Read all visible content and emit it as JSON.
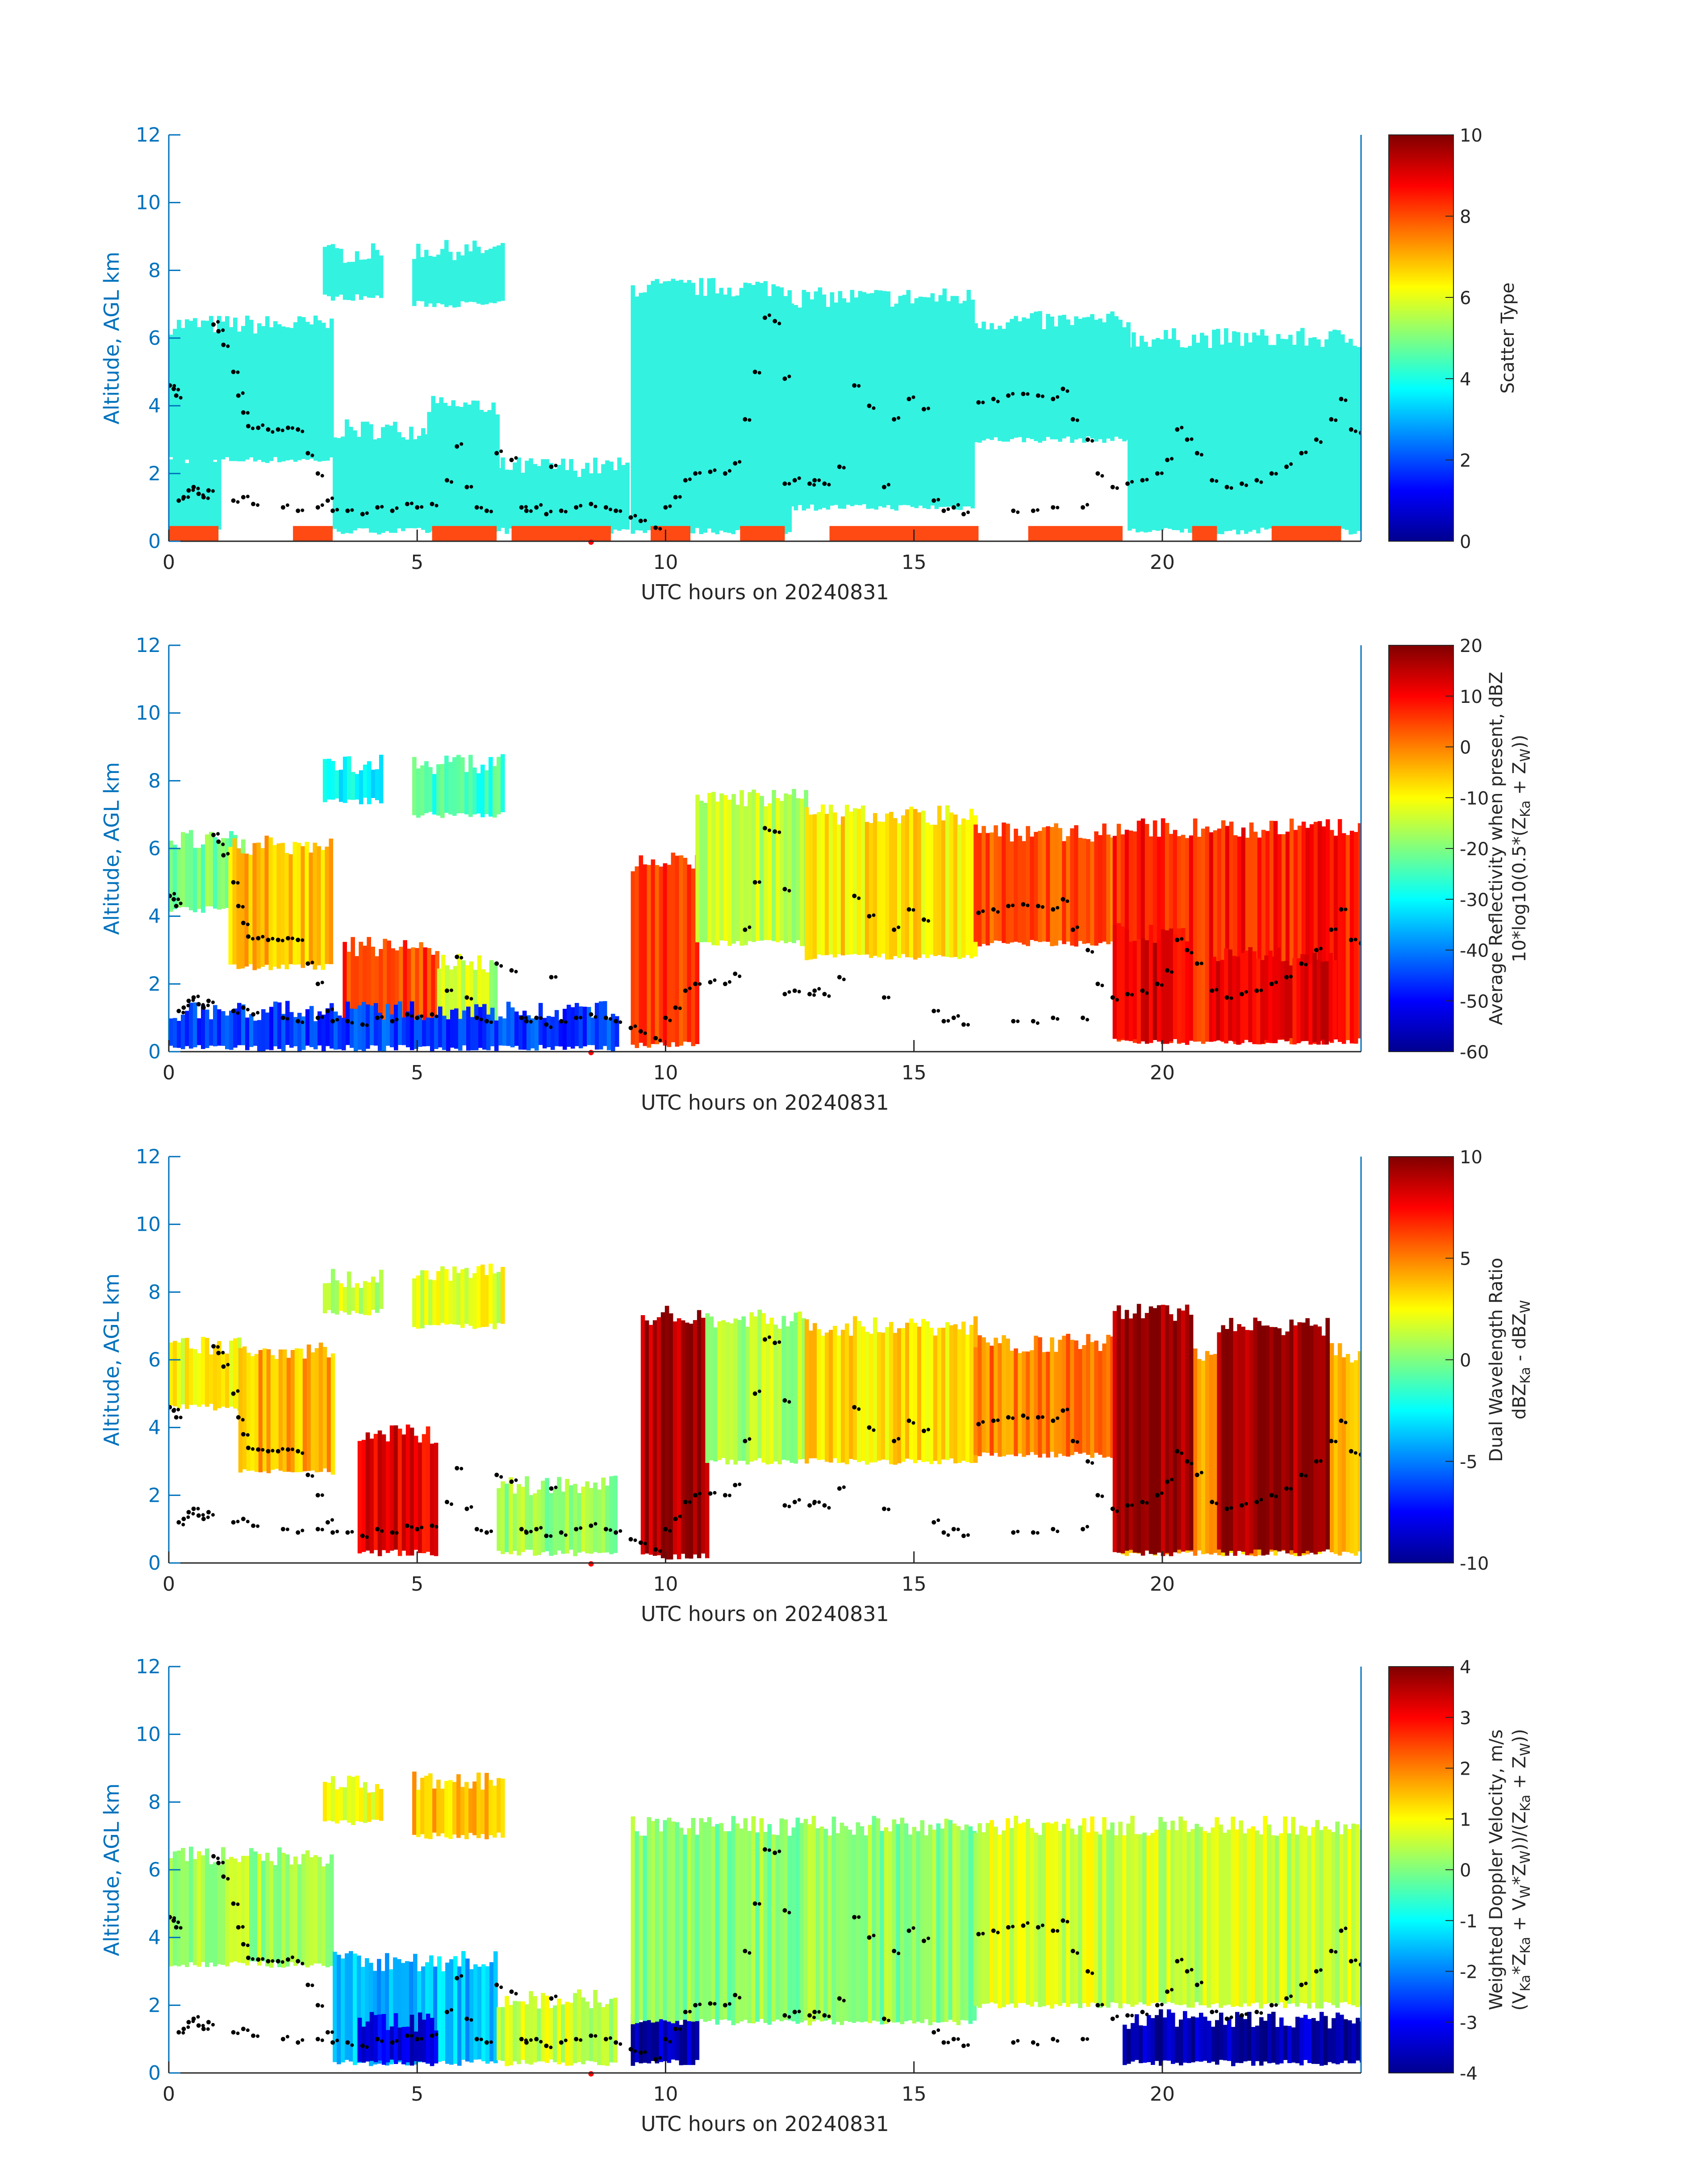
{
  "chart_data": [
    {
      "type": "heatmap",
      "xlabel": "UTC hours on 20240831",
      "ylabel": "Altitude, AGL km",
      "xlim": [
        0,
        24
      ],
      "ylim": [
        0,
        12
      ],
      "xticks": [
        "0",
        "5",
        "10",
        "15",
        "20"
      ],
      "yticks": [
        "0",
        "2",
        "4",
        "6",
        "8",
        "10",
        "12"
      ],
      "colorbar": {
        "label_lines": [
          "Scatter Type"
        ],
        "range": [
          0,
          10
        ],
        "ticks": [
          "0",
          "2",
          "4",
          "6",
          "8",
          "10"
        ]
      },
      "colors": {
        "cloud": "#33f2e0",
        "surface": "#ff4a14",
        "edge": "#33f2e0"
      },
      "regions": [
        {
          "x0": 0.0,
          "x1": 3.3,
          "y0": 2.4,
          "y1": 6.4
        },
        {
          "x0": 3.3,
          "x1": 6.6,
          "y0": 0.3,
          "y1": 3.3
        },
        {
          "x0": 5.2,
          "x1": 6.6,
          "y0": 0.3,
          "y1": 4.0
        },
        {
          "x0": 3.1,
          "x1": 4.3,
          "y0": 7.2,
          "y1": 8.5
        },
        {
          "x0": 4.9,
          "x1": 6.7,
          "y0": 7.0,
          "y1": 8.6
        },
        {
          "x0": 6.6,
          "x1": 9.2,
          "y0": 0.3,
          "y1": 2.2
        },
        {
          "x0": 9.3,
          "x1": 12.5,
          "y0": 0.3,
          "y1": 7.5
        },
        {
          "x0": 12.5,
          "x1": 16.2,
          "y0": 1.0,
          "y1": 7.2
        },
        {
          "x0": 16.2,
          "x1": 19.3,
          "y0": 3.0,
          "y1": 6.5
        },
        {
          "x0": 19.3,
          "x1": 24.0,
          "y0": 0.3,
          "y1": 6.0
        },
        {
          "x0": 0.0,
          "x1": 1.0,
          "y0": 0.3,
          "y1": 2.5
        }
      ],
      "surface_bands": [
        [
          0.0,
          1.0
        ],
        [
          2.5,
          3.3
        ],
        [
          5.3,
          6.6
        ],
        [
          6.9,
          8.9
        ],
        [
          9.7,
          10.5
        ],
        [
          11.5,
          12.4
        ],
        [
          13.3,
          16.3
        ],
        [
          17.3,
          19.2
        ],
        [
          20.6,
          21.1
        ],
        [
          22.2,
          23.6
        ]
      ]
    },
    {
      "type": "heatmap",
      "xlabel": "UTC hours on 20240831",
      "ylabel": "Altitude, AGL km",
      "xlim": [
        0,
        24
      ],
      "ylim": [
        0,
        12
      ],
      "xticks": [
        "0",
        "5",
        "10",
        "15",
        "20"
      ],
      "yticks": [
        "0",
        "2",
        "4",
        "6",
        "8",
        "10",
        "12"
      ],
      "colorbar": {
        "label_lines": [
          "Average Reflectivity when present, dBZ",
          "10*log10(0.5*(Z_Ka + Z_W))"
        ],
        "range": [
          -60,
          20
        ],
        "ticks": [
          "-60",
          "-50",
          "-40",
          "-30",
          "-20",
          "-10",
          "0",
          "10",
          "20"
        ]
      },
      "regions": [
        {
          "x0": 0.0,
          "x1": 1.5,
          "y0": 4.2,
          "y1": 6.3,
          "value": -20
        },
        {
          "x0": 1.2,
          "x1": 3.3,
          "y0": 2.5,
          "y1": 6.1,
          "value": -5
        },
        {
          "x0": 3.1,
          "x1": 4.3,
          "y0": 7.4,
          "y1": 8.5,
          "value": -30
        },
        {
          "x0": 4.9,
          "x1": 6.7,
          "y0": 7.0,
          "y1": 8.5,
          "value": -25
        },
        {
          "x0": 3.5,
          "x1": 5.4,
          "y0": 0.3,
          "y1": 3.1,
          "value": 5
        },
        {
          "x0": 5.4,
          "x1": 6.6,
          "y0": 0.3,
          "y1": 2.6,
          "value": -15
        },
        {
          "x0": 0.0,
          "x1": 9.0,
          "y0": 0.1,
          "y1": 1.2,
          "value": -45
        },
        {
          "x0": 9.3,
          "x1": 10.6,
          "y0": 0.2,
          "y1": 5.6,
          "value": 5
        },
        {
          "x0": 10.6,
          "x1": 12.8,
          "y0": 3.2,
          "y1": 7.5,
          "value": -15
        },
        {
          "x0": 12.8,
          "x1": 16.2,
          "y0": 2.8,
          "y1": 7.0,
          "value": -8
        },
        {
          "x0": 16.2,
          "x1": 19.0,
          "y0": 3.2,
          "y1": 6.5,
          "value": 3
        },
        {
          "x0": 19.0,
          "x1": 24.0,
          "y0": 0.3,
          "y1": 6.6,
          "value": 8
        },
        {
          "x0": 19.0,
          "x1": 20.5,
          "y0": 0.3,
          "y1": 3.5,
          "value": 12
        },
        {
          "x0": 21.0,
          "x1": 23.5,
          "y0": 0.3,
          "y1": 2.8,
          "value": 12
        }
      ]
    },
    {
      "type": "heatmap",
      "xlabel": "UTC hours on 20240831",
      "ylabel": "Altitude, AGL km",
      "xlim": [
        0,
        24
      ],
      "ylim": [
        0,
        12
      ],
      "xticks": [
        "0",
        "5",
        "10",
        "15",
        "20"
      ],
      "yticks": [
        "0",
        "2",
        "4",
        "6",
        "8",
        "10",
        "12"
      ],
      "colorbar": {
        "label_lines": [
          "Dual Wavelength Ratio",
          "dBZ_Ka - dBZ_W"
        ],
        "range": [
          -10,
          10
        ],
        "ticks": [
          "-10",
          "-5",
          "0",
          "5",
          "10"
        ]
      },
      "regions": [
        {
          "x0": 0.0,
          "x1": 1.4,
          "y0": 4.6,
          "y1": 6.4,
          "value": 2.5
        },
        {
          "x0": 1.4,
          "x1": 3.3,
          "y0": 2.7,
          "y1": 6.3,
          "value": 4
        },
        {
          "x0": 3.1,
          "x1": 4.3,
          "y0": 7.4,
          "y1": 8.4,
          "value": 1.5
        },
        {
          "x0": 4.9,
          "x1": 6.7,
          "y0": 7.0,
          "y1": 8.6,
          "value": 2
        },
        {
          "x0": 3.8,
          "x1": 5.4,
          "y0": 0.3,
          "y1": 3.8,
          "value": 8
        },
        {
          "x0": 6.6,
          "x1": 9.0,
          "y0": 0.3,
          "y1": 2.3,
          "value": 0.5
        },
        {
          "x0": 9.5,
          "x1": 10.8,
          "y0": 0.2,
          "y1": 7.3,
          "value": 9
        },
        {
          "x0": 10.8,
          "x1": 12.8,
          "y0": 3.0,
          "y1": 7.2,
          "value": 1
        },
        {
          "x0": 12.8,
          "x1": 16.2,
          "y0": 3.0,
          "y1": 7.0,
          "value": 3
        },
        {
          "x0": 16.2,
          "x1": 19.0,
          "y0": 3.2,
          "y1": 6.5,
          "value": 5
        },
        {
          "x0": 19.0,
          "x1": 24.0,
          "y0": 0.3,
          "y1": 6.2,
          "value": 4
        },
        {
          "x0": 19.0,
          "x1": 20.6,
          "y0": 0.3,
          "y1": 7.4,
          "value": 9.5
        },
        {
          "x0": 21.1,
          "x1": 23.3,
          "y0": 0.3,
          "y1": 7.0,
          "value": 9.5
        }
      ]
    },
    {
      "type": "heatmap",
      "xlabel": "UTC hours on 20240831",
      "ylabel": "Altitude, AGL km",
      "xlim": [
        0,
        24
      ],
      "ylim": [
        0,
        12
      ],
      "xticks": [
        "0",
        "5",
        "10",
        "15",
        "20"
      ],
      "yticks": [
        "0",
        "2",
        "4",
        "6",
        "8",
        "10",
        "12"
      ],
      "colorbar": {
        "label_lines": [
          "Weighted Doppler Velocity, m/s",
          "(V_Ka*Z_Ka + V_W*Z_W))/(Z_Ka + Z_W))"
        ],
        "range": [
          -4,
          4
        ],
        "ticks": [
          "-4",
          "-3",
          "-2",
          "-1",
          "0",
          "1",
          "2",
          "3",
          "4"
        ]
      },
      "regions": [
        {
          "x0": 0.0,
          "x1": 3.3,
          "y0": 3.2,
          "y1": 6.4,
          "value": 0.3
        },
        {
          "x0": 3.1,
          "x1": 4.3,
          "y0": 7.4,
          "y1": 8.5,
          "value": 1
        },
        {
          "x0": 4.9,
          "x1": 6.7,
          "y0": 7.0,
          "y1": 8.6,
          "value": 1.5
        },
        {
          "x0": 3.3,
          "x1": 6.6,
          "y0": 0.3,
          "y1": 3.3,
          "value": -1.5
        },
        {
          "x0": 3.8,
          "x1": 5.4,
          "y0": 0.3,
          "y1": 1.5,
          "value": -3.3
        },
        {
          "x0": 6.6,
          "x1": 9.0,
          "y0": 0.3,
          "y1": 2.2,
          "value": 0.6
        },
        {
          "x0": 9.3,
          "x1": 10.6,
          "y0": 0.3,
          "y1": 1.7,
          "value": -3.5
        },
        {
          "x0": 9.3,
          "x1": 16.2,
          "y0": 1.5,
          "y1": 7.3,
          "value": 0.1
        },
        {
          "x0": 16.2,
          "x1": 24.0,
          "y0": 2.0,
          "y1": 7.3,
          "value": 0.6
        },
        {
          "x0": 19.2,
          "x1": 24.0,
          "y0": 0.3,
          "y1": 1.6,
          "value": -3.6
        }
      ]
    }
  ]
}
